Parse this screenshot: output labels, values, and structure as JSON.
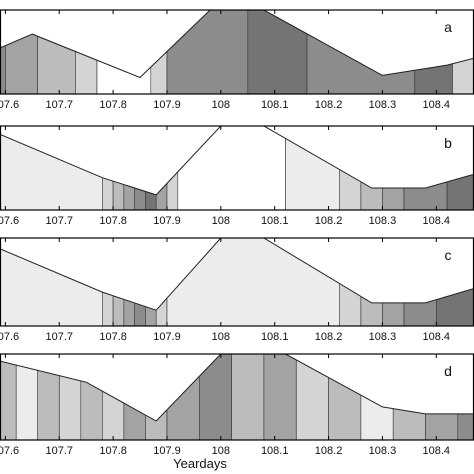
{
  "chart_data": {
    "type": "heatmap",
    "xlabel": "Yeardays",
    "x_ticks": [
      "107.6",
      "107.7",
      "107.8",
      "107.9",
      "108",
      "108.1",
      "108.2",
      "108.3",
      "108.4"
    ],
    "x_tick_values": [
      107.6,
      107.7,
      107.8,
      107.9,
      108.0,
      108.1,
      108.2,
      108.3,
      108.4
    ],
    "xlim": [
      107.59,
      108.47
    ],
    "grid": false,
    "legend": "none",
    "colors": {
      "frame": "#000000",
      "background": "#ffffff",
      "contour_line": "#222222"
    },
    "panels": [
      {
        "letter": "a",
        "surface_depth": [
          [
            107.59,
            0.55
          ],
          [
            107.65,
            0.35
          ],
          [
            107.85,
            0.98
          ],
          [
            107.98,
            0.0
          ],
          [
            108.08,
            0.0
          ],
          [
            108.3,
            0.95
          ],
          [
            108.42,
            0.8
          ],
          [
            108.47,
            0.7
          ]
        ],
        "bands": [
          {
            "x_start": 107.59,
            "x_end": 107.6,
            "level": 5
          },
          {
            "x_start": 107.6,
            "x_end": 107.66,
            "level": 4
          },
          {
            "x_start": 107.66,
            "x_end": 107.73,
            "level": 3
          },
          {
            "x_start": 107.73,
            "x_end": 107.77,
            "level": 2
          },
          {
            "x_start": 107.77,
            "x_end": 107.87,
            "level": 0
          },
          {
            "x_start": 107.87,
            "x_end": 107.9,
            "level": 2
          },
          {
            "x_start": 107.9,
            "x_end": 108.05,
            "level": 5
          },
          {
            "x_start": 108.05,
            "x_end": 108.16,
            "level": 6
          },
          {
            "x_start": 108.16,
            "x_end": 108.36,
            "level": 5
          },
          {
            "x_start": 108.36,
            "x_end": 108.43,
            "level": 6
          },
          {
            "x_start": 108.43,
            "x_end": 108.47,
            "level": 2
          }
        ]
      },
      {
        "letter": "b",
        "surface_depth": [
          [
            107.59,
            0.12
          ],
          [
            107.78,
            0.75
          ],
          [
            107.88,
            1.0
          ],
          [
            108.0,
            0.0
          ],
          [
            108.08,
            0.0
          ],
          [
            108.28,
            0.9
          ],
          [
            108.38,
            0.9
          ],
          [
            108.47,
            0.7
          ]
        ],
        "bands": [
          {
            "x_start": 107.59,
            "x_end": 107.78,
            "level": 1
          },
          {
            "x_start": 107.78,
            "x_end": 107.8,
            "level": 2
          },
          {
            "x_start": 107.8,
            "x_end": 107.82,
            "level": 3
          },
          {
            "x_start": 107.82,
            "x_end": 107.84,
            "level": 4
          },
          {
            "x_start": 107.84,
            "x_end": 107.86,
            "level": 5
          },
          {
            "x_start": 107.86,
            "x_end": 107.88,
            "level": 6
          },
          {
            "x_start": 107.88,
            "x_end": 107.9,
            "level": 4
          },
          {
            "x_start": 107.9,
            "x_end": 107.92,
            "level": 2
          },
          {
            "x_start": 107.92,
            "x_end": 108.12,
            "level": 0
          },
          {
            "x_start": 108.12,
            "x_end": 108.22,
            "level": 1
          },
          {
            "x_start": 108.22,
            "x_end": 108.26,
            "level": 2
          },
          {
            "x_start": 108.26,
            "x_end": 108.3,
            "level": 3
          },
          {
            "x_start": 108.3,
            "x_end": 108.34,
            "level": 4
          },
          {
            "x_start": 108.34,
            "x_end": 108.42,
            "level": 5
          },
          {
            "x_start": 108.42,
            "x_end": 108.47,
            "level": 6
          }
        ]
      },
      {
        "letter": "c",
        "surface_depth": [
          [
            107.59,
            0.15
          ],
          [
            107.78,
            0.75
          ],
          [
            107.88,
            1.0
          ],
          [
            108.0,
            0.0
          ],
          [
            108.08,
            0.0
          ],
          [
            108.28,
            0.9
          ],
          [
            108.38,
            0.9
          ],
          [
            108.47,
            0.7
          ]
        ],
        "bands": [
          {
            "x_start": 107.59,
            "x_end": 107.78,
            "level": 1
          },
          {
            "x_start": 107.78,
            "x_end": 107.8,
            "level": 2
          },
          {
            "x_start": 107.8,
            "x_end": 107.82,
            "level": 3
          },
          {
            "x_start": 107.82,
            "x_end": 107.84,
            "level": 4
          },
          {
            "x_start": 107.84,
            "x_end": 107.86,
            "level": 5
          },
          {
            "x_start": 107.86,
            "x_end": 107.88,
            "level": 4
          },
          {
            "x_start": 107.88,
            "x_end": 107.9,
            "level": 2
          },
          {
            "x_start": 107.9,
            "x_end": 108.22,
            "level": 1
          },
          {
            "x_start": 108.22,
            "x_end": 108.26,
            "level": 2
          },
          {
            "x_start": 108.26,
            "x_end": 108.3,
            "level": 3
          },
          {
            "x_start": 108.3,
            "x_end": 108.34,
            "level": 4
          },
          {
            "x_start": 108.34,
            "x_end": 108.4,
            "level": 5
          },
          {
            "x_start": 108.4,
            "x_end": 108.47,
            "level": 6
          }
        ]
      },
      {
        "letter": "d",
        "surface_depth": [
          [
            107.59,
            0.1
          ],
          [
            107.75,
            0.4
          ],
          [
            107.88,
            0.95
          ],
          [
            108.0,
            0.0
          ],
          [
            108.12,
            0.0
          ],
          [
            108.3,
            0.75
          ],
          [
            108.38,
            0.85
          ],
          [
            108.47,
            0.85
          ]
        ],
        "bands": [
          {
            "x_start": 107.59,
            "x_end": 107.62,
            "level": 3
          },
          {
            "x_start": 107.62,
            "x_end": 107.66,
            "level": 1
          },
          {
            "x_start": 107.66,
            "x_end": 107.7,
            "level": 3
          },
          {
            "x_start": 107.7,
            "x_end": 107.74,
            "level": 2
          },
          {
            "x_start": 107.74,
            "x_end": 107.78,
            "level": 3
          },
          {
            "x_start": 107.78,
            "x_end": 107.82,
            "level": 2
          },
          {
            "x_start": 107.82,
            "x_end": 107.86,
            "level": 4
          },
          {
            "x_start": 107.86,
            "x_end": 107.9,
            "level": 3
          },
          {
            "x_start": 107.9,
            "x_end": 107.96,
            "level": 4
          },
          {
            "x_start": 107.96,
            "x_end": 108.02,
            "level": 5
          },
          {
            "x_start": 108.02,
            "x_end": 108.08,
            "level": 3
          },
          {
            "x_start": 108.08,
            "x_end": 108.14,
            "level": 4
          },
          {
            "x_start": 108.14,
            "x_end": 108.2,
            "level": 2
          },
          {
            "x_start": 108.2,
            "x_end": 108.26,
            "level": 3
          },
          {
            "x_start": 108.26,
            "x_end": 108.32,
            "level": 1
          },
          {
            "x_start": 108.32,
            "x_end": 108.38,
            "level": 3
          },
          {
            "x_start": 108.38,
            "x_end": 108.44,
            "level": 4
          },
          {
            "x_start": 108.44,
            "x_end": 108.47,
            "level": 5
          }
        ]
      }
    ]
  }
}
